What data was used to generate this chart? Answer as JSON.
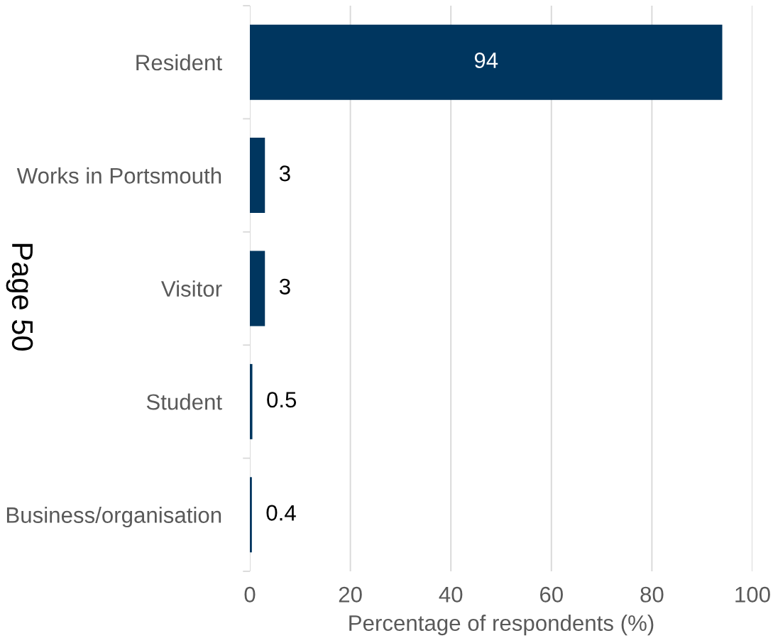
{
  "chart_data": {
    "type": "bar",
    "orientation": "horizontal",
    "categories": [
      "Resident",
      "Works in Portsmouth",
      "Visitor",
      "Student",
      "Business/organisation"
    ],
    "values": [
      94,
      3,
      3,
      0.5,
      0.4
    ],
    "color": "#00365f",
    "xlabel": "Percentage of respondents (%)",
    "xlim": [
      0,
      100
    ],
    "xticks": [
      0,
      20,
      40,
      60,
      80,
      100
    ],
    "grid": "x",
    "data_labels": true,
    "annotations": [
      "Page 50"
    ]
  }
}
